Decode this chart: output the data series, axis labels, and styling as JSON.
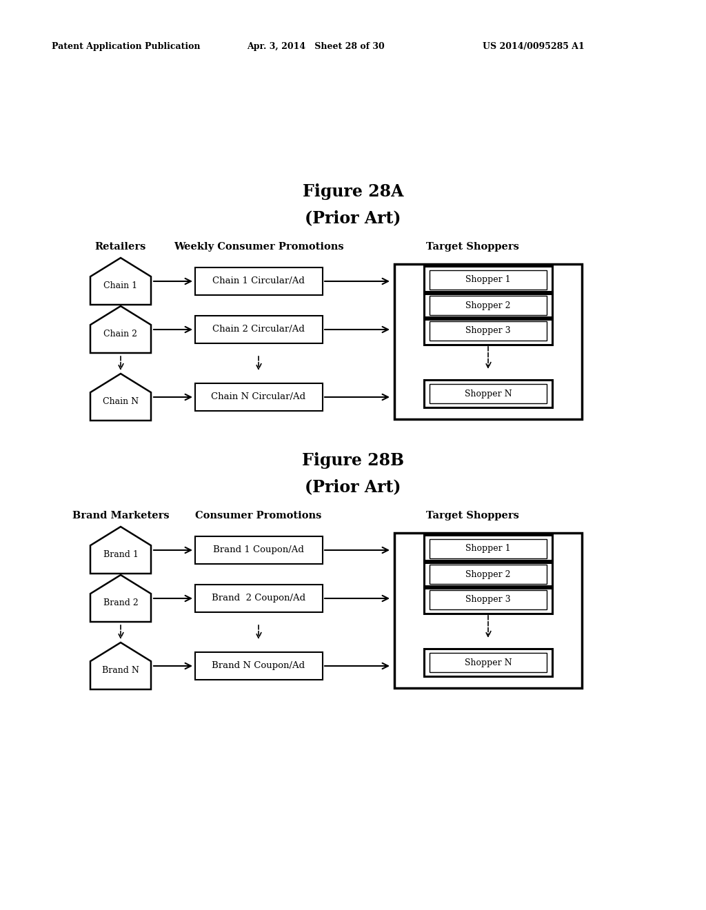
{
  "bg_color": "#ffffff",
  "header_line1": "Patent Application Publication",
  "header_line2": "Apr. 3, 2014   Sheet 28 of 30",
  "header_line3": "US 2014/0095285 A1",
  "fig28a_title": "Figure 28A",
  "fig28a_subtitle": "(Prior Art)",
  "fig28b_title": "Figure 28B",
  "fig28b_subtitle": "(Prior Art)",
  "col1a_label": "Retailers",
  "col2a_label": "Weekly Consumer Promotions",
  "col3a_label": "Target Shoppers",
  "col1b_label": "Brand Marketers",
  "col2b_label": "Consumer Promotions",
  "col3b_label": "Target Shoppers",
  "chain_labels": [
    "Chain 1",
    "Chain 2",
    "Chain N"
  ],
  "chain_promo_labels": [
    "Chain 1 Circular/Ad",
    "Chain 2 Circular/Ad",
    "Chain N Circular/Ad"
  ],
  "brand_labels": [
    "Brand 1",
    "Brand 2",
    "Brand N"
  ],
  "brand_promo_labels": [
    "Brand 1 Coupon/Ad",
    "Brand  2 Coupon/Ad",
    "Brand N Coupon/Ad"
  ],
  "shopper_labels": [
    "Shopper 1",
    "Shopper 2",
    "Shopper 3",
    "Shopper N"
  ]
}
